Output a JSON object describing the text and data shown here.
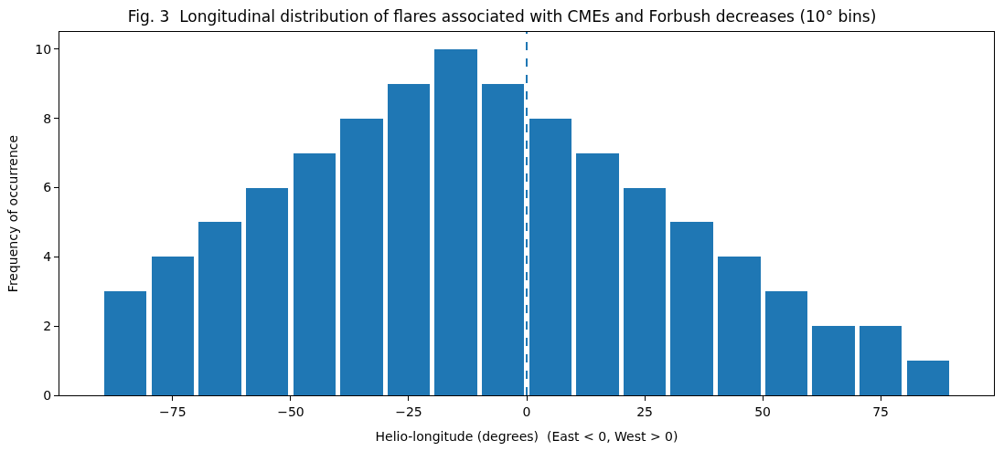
{
  "chart_data": {
    "type": "histogram",
    "title": "Fig. 3  Longitudinal distribution of flares associated with CMEs and Forbush decreases (10° bins)",
    "xlabel": "Helio-longitude (degrees)  (East < 0, West > 0)",
    "ylabel": "Frequency of occurrence",
    "bins": [
      -90,
      -80,
      -70,
      -60,
      -50,
      -40,
      -30,
      -20,
      -10,
      0,
      10,
      20,
      30,
      40,
      50,
      60,
      70,
      80,
      90
    ],
    "values": [
      3,
      4,
      5,
      6,
      7,
      8,
      9,
      10,
      9,
      8,
      7,
      6,
      5,
      4,
      3,
      2,
      2,
      1
    ],
    "color": "#1f77b4",
    "xlim": [
      -99,
      99
    ],
    "xticks": [
      -75,
      -50,
      -25,
      0,
      25,
      50,
      75
    ],
    "ylim": [
      0,
      10.5
    ],
    "yticks": [
      0,
      2,
      4,
      6,
      8,
      10
    ],
    "ref_lines": [
      {
        "axis": "x",
        "value": 0,
        "color": "#1f77b4",
        "line_style": "dashed"
      }
    ],
    "tick_labels": "xy"
  }
}
